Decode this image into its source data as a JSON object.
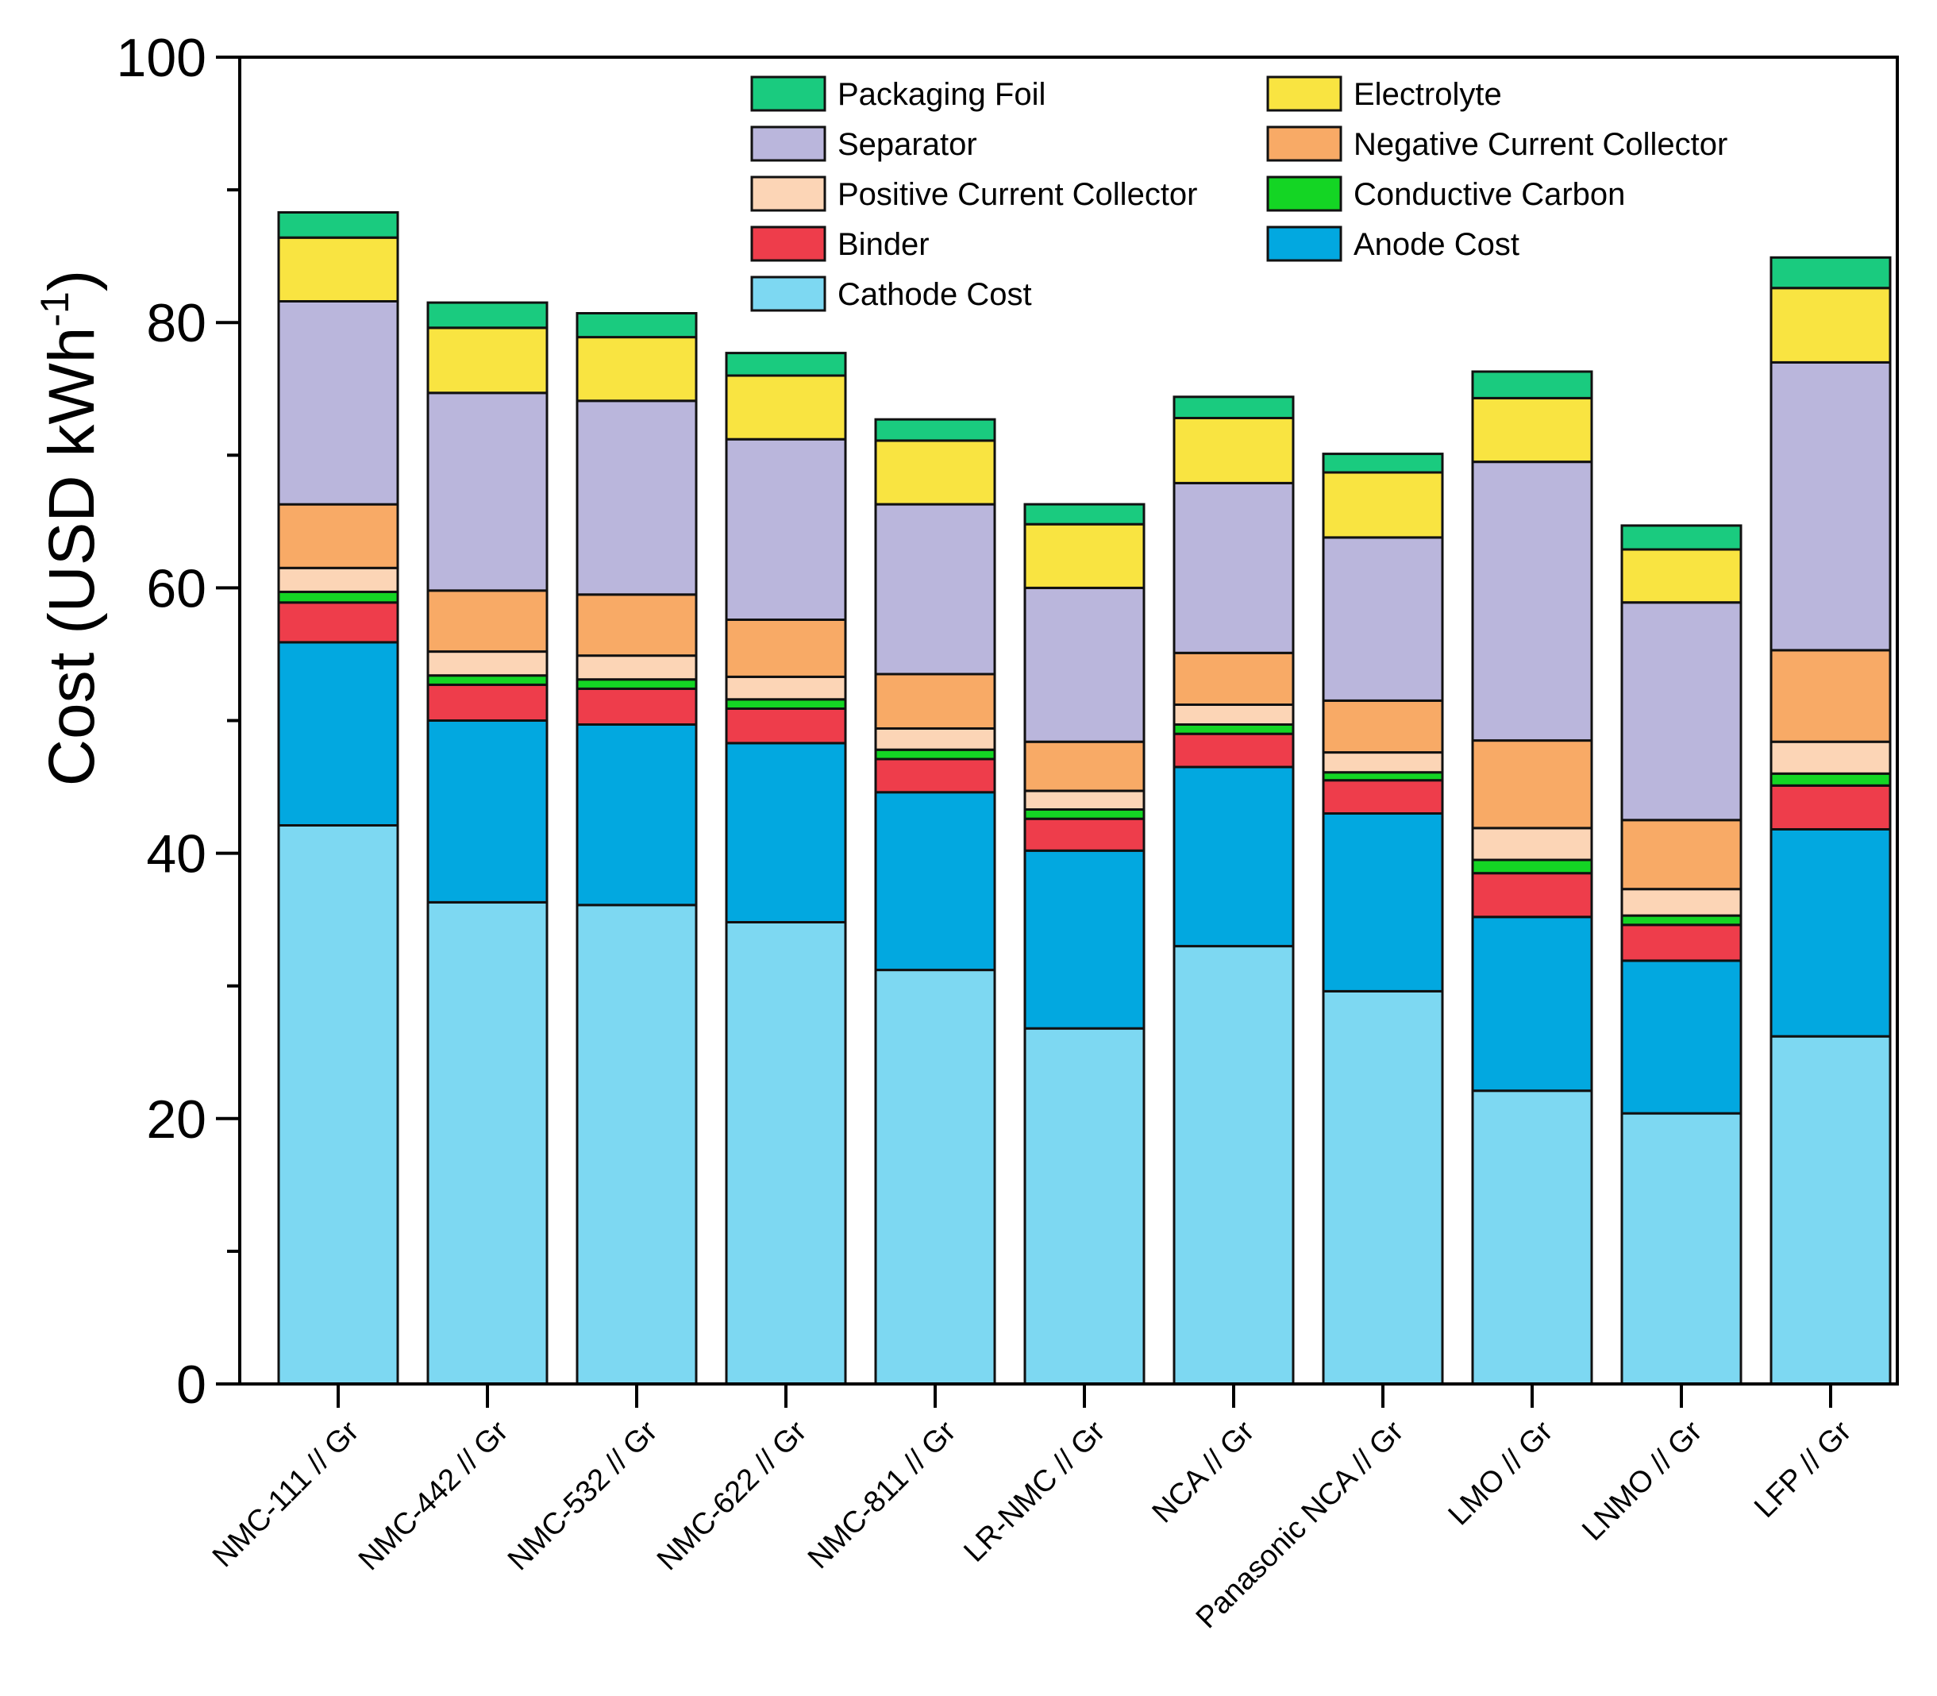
{
  "chart_data": {
    "type": "bar",
    "stacked": true,
    "title": "",
    "xlabel": "",
    "ylabel": "Cost (USD kWh",
    "ylabel_superscript": "-1",
    "ylabel_suffix": ")",
    "ylim": [
      0,
      100
    ],
    "yticks": [
      "0",
      "20",
      "40",
      "60",
      "80",
      "100"
    ],
    "yticks_values": [
      0,
      20,
      40,
      60,
      80,
      100
    ],
    "yminor_values": [
      10,
      30,
      50,
      70,
      90
    ],
    "legend_position": "top, inside plot",
    "categories": [
      "NMC-111 // Gr",
      "NMC-442 // Gr",
      "NMC-532 // Gr",
      "NMC-622 // Gr",
      "NMC-811 // Gr",
      "LR-NMC // Gr",
      "NCA // Gr",
      "Panasonic NCA // Gr",
      "LMO // Gr",
      "LNMO // Gr",
      "LFP // Gr"
    ],
    "series": [
      {
        "name": "Cathode Cost",
        "color": "#7DD8F2",
        "values": [
          42.1,
          36.3,
          36.1,
          34.8,
          31.2,
          26.8,
          33.0,
          29.6,
          22.1,
          20.4,
          26.2
        ]
      },
      {
        "name": "Anode Cost",
        "color": "#02A8E0",
        "values": [
          13.8,
          13.7,
          13.6,
          13.5,
          13.4,
          13.4,
          13.5,
          13.4,
          13.1,
          11.5,
          15.6
        ]
      },
      {
        "name": "Binder",
        "color": "#EE3D4B",
        "values": [
          3.0,
          2.7,
          2.7,
          2.6,
          2.5,
          2.4,
          2.5,
          2.5,
          3.3,
          2.7,
          3.3
        ]
      },
      {
        "name": "Conductive Carbon",
        "color": "#14D524",
        "values": [
          0.8,
          0.7,
          0.7,
          0.7,
          0.7,
          0.7,
          0.7,
          0.6,
          1.0,
          0.7,
          0.9
        ]
      },
      {
        "name": "Positive Current Collector",
        "color": "#FCD5B6",
        "values": [
          1.8,
          1.8,
          1.8,
          1.7,
          1.6,
          1.4,
          1.5,
          1.5,
          2.4,
          2.0,
          2.4
        ]
      },
      {
        "name": "Negative Current Collector",
        "color": "#F8AA66",
        "values": [
          4.8,
          4.6,
          4.6,
          4.3,
          4.1,
          3.7,
          3.9,
          3.9,
          6.6,
          5.2,
          6.9
        ]
      },
      {
        "name": "Separator",
        "color": "#BAB6DC",
        "values": [
          15.3,
          14.9,
          14.6,
          13.6,
          12.8,
          11.6,
          12.8,
          12.3,
          21.0,
          16.4,
          21.7
        ]
      },
      {
        "name": "Electrolyte",
        "color": "#F9E441",
        "values": [
          4.8,
          4.9,
          4.8,
          4.8,
          4.8,
          4.8,
          4.9,
          4.9,
          4.8,
          4.0,
          5.6
        ]
      },
      {
        "name": "Packaging Foil",
        "color": "#1ACB7F",
        "values": [
          1.9,
          1.9,
          1.8,
          1.7,
          1.6,
          1.5,
          1.6,
          1.4,
          2.0,
          1.8,
          2.3
        ]
      }
    ],
    "legend": [
      {
        "name": "Packaging Foil",
        "color": "#1ACB7F"
      },
      {
        "name": "Electrolyte",
        "color": "#F9E441"
      },
      {
        "name": "Separator",
        "color": "#BAB6DC"
      },
      {
        "name": "Negative Current Collector",
        "color": "#F8AA66"
      },
      {
        "name": "Positive Current Collector",
        "color": "#FCD5B6"
      },
      {
        "name": "Conductive Carbon",
        "color": "#14D524"
      },
      {
        "name": "Binder",
        "color": "#EE3D4B"
      },
      {
        "name": "Anode Cost",
        "color": "#02A8E0"
      },
      {
        "name": "Cathode Cost",
        "color": "#7DD8F2"
      }
    ]
  }
}
